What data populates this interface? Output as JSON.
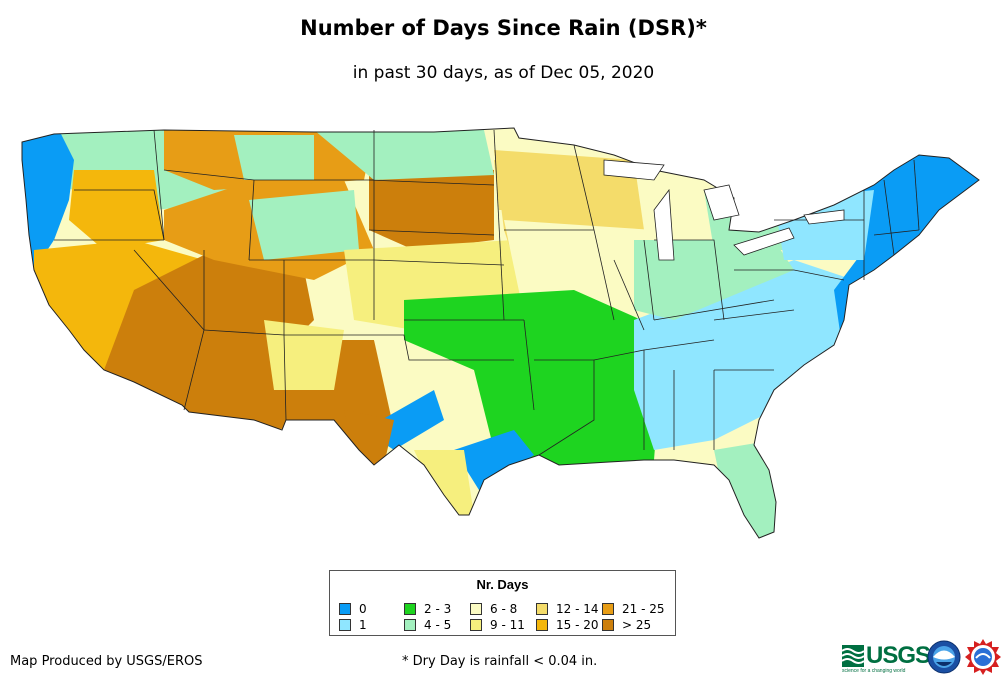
{
  "title": "Number of Days Since Rain (DSR)*",
  "subtitle": "in past 30 days, as of Dec 05, 2020",
  "legend": {
    "title": "Nr. Days",
    "items": [
      {
        "label": "0",
        "color": "#0a9cf5"
      },
      {
        "label": "1",
        "color": "#8fe6ff"
      },
      {
        "label": "2 - 3",
        "color": "#1ed420"
      },
      {
        "label": "4 - 5",
        "color": "#a3f0bf"
      },
      {
        "label": "6 - 8",
        "color": "#fbfbc3"
      },
      {
        "label": "9 - 11",
        "color": "#f6ef7e"
      },
      {
        "label": "12 - 14",
        "color": "#f4dc6a"
      },
      {
        "label": "15 - 20",
        "color": "#f4b70c"
      },
      {
        "label": "21 - 25",
        "color": "#e79d16"
      },
      {
        "label": "> 25",
        "color": "#cc7f0c"
      }
    ]
  },
  "credit": "Map Produced by USGS/EROS",
  "footnote": "* Dry Day is rainfall < 0.04 in.",
  "logos": {
    "usgs": "USGS",
    "usgs_tagline": "science for a changing world"
  },
  "icons": [
    "usgs-logo-icon",
    "noaa-seal-icon",
    "nws-seal-icon"
  ]
}
